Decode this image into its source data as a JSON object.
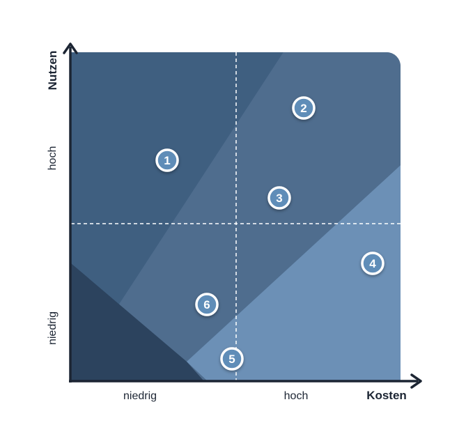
{
  "axes": {
    "x_title": "Kosten",
    "y_title": "Nutzen",
    "x_ticks": [
      "niedrig",
      "hoch"
    ],
    "y_ticks": [
      "niedrig",
      "hoch"
    ]
  },
  "zones": [
    {
      "color": "#3f5f80"
    },
    {
      "color": "#4f6d8e"
    },
    {
      "color": "#6c90b6"
    },
    {
      "color": "#2c435e"
    }
  ],
  "markers": [
    {
      "label": "1"
    },
    {
      "label": "2"
    },
    {
      "label": "3"
    },
    {
      "label": "4"
    },
    {
      "label": "5"
    },
    {
      "label": "6"
    }
  ],
  "colors": {
    "axis": "#1c2533",
    "marker_fill": "#5f8db8",
    "marker_ring": "#ffffff",
    "divider": "#ffffff"
  }
}
